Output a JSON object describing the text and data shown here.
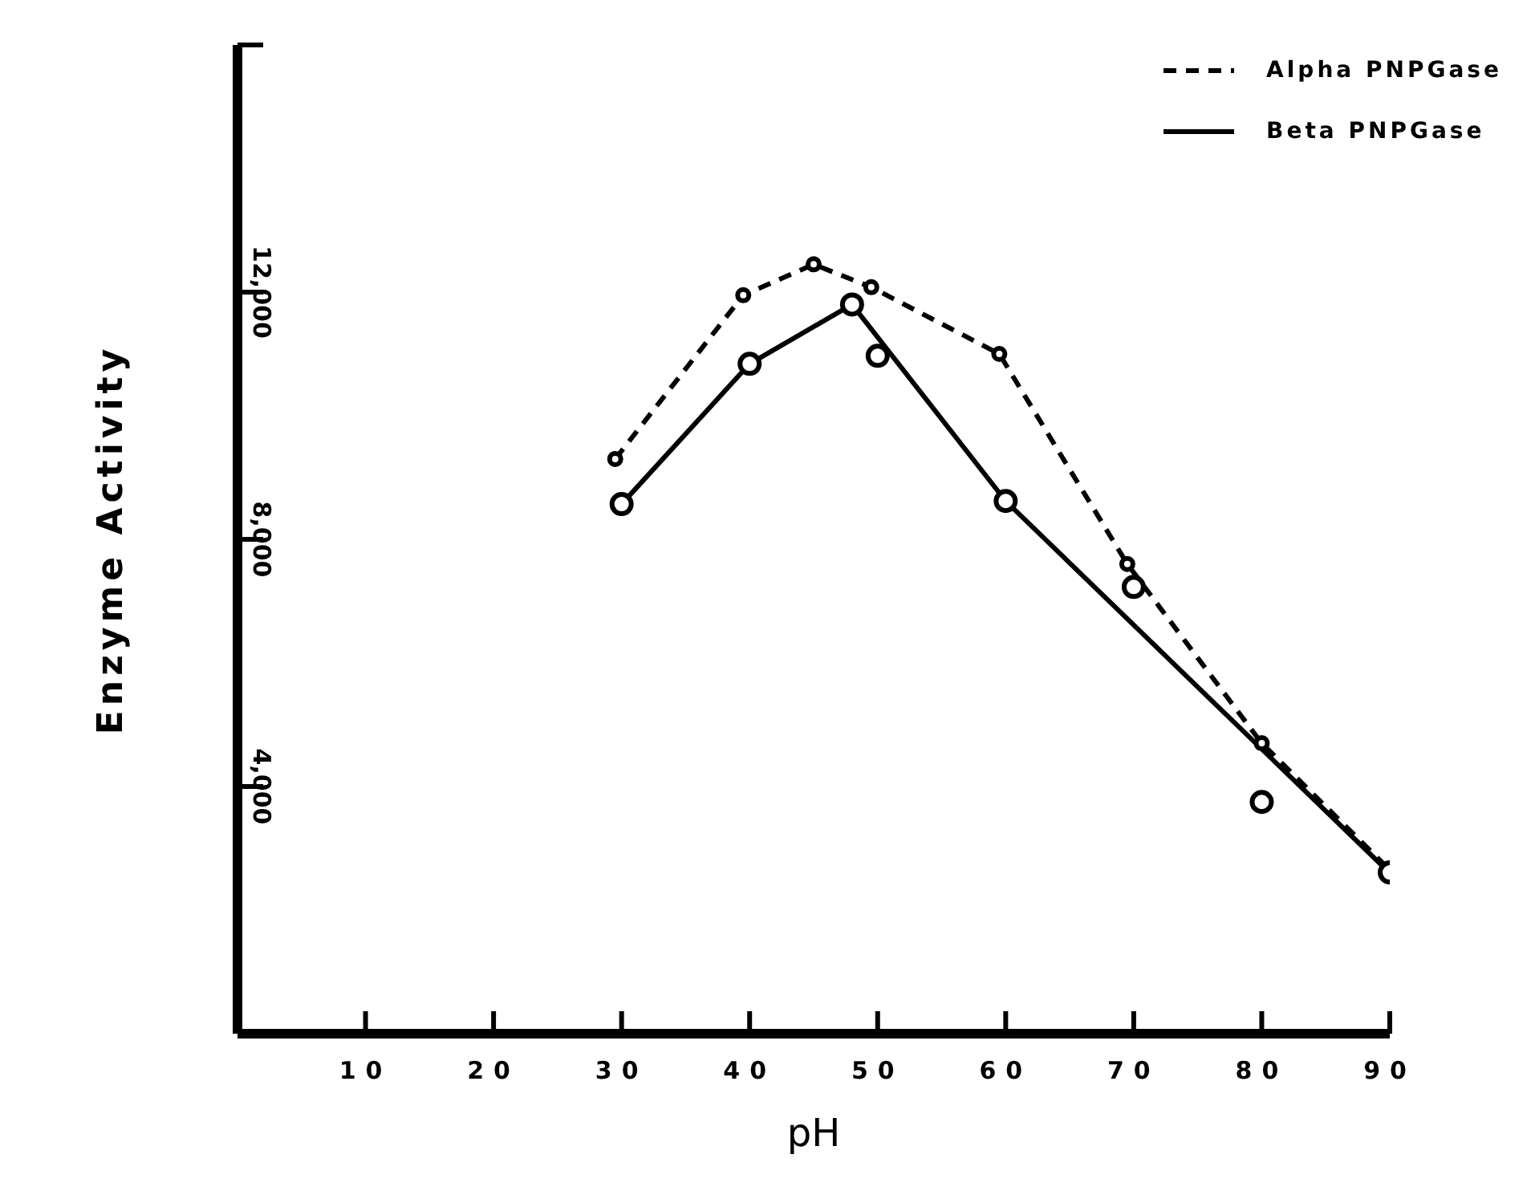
{
  "chart_data": {
    "type": "line",
    "xlabel": "pH",
    "ylabel": "Enzyme Activity",
    "xlim": [
      0,
      90
    ],
    "xticks": [
      {
        "value": 10,
        "label": "10"
      },
      {
        "value": 20,
        "label": "20"
      },
      {
        "value": 30,
        "label": "30"
      },
      {
        "value": 40,
        "label": "40"
      },
      {
        "value": 50,
        "label": "50"
      },
      {
        "value": 60,
        "label": "60"
      },
      {
        "value": 70,
        "label": "70"
      },
      {
        "value": 80,
        "label": "80"
      },
      {
        "value": 90,
        "label": "90"
      }
    ],
    "ylim": [
      0,
      16000
    ],
    "yticks": [
      {
        "value": 4000,
        "label": "4,000"
      },
      {
        "value": 8000,
        "label": "8,000"
      },
      {
        "value": 12000,
        "label": "12,000"
      },
      {
        "value": 16000,
        "label": null
      }
    ],
    "grid": false,
    "legend": "top right",
    "series": [
      {
        "name": "Alpha PNPGase",
        "color": "#000000",
        "line_style": "dashed",
        "marker": "circle",
        "x": [
          29.5,
          39.5,
          45,
          49.5,
          59.5,
          69.5,
          80,
          90
        ],
        "values": [
          9300,
          11950,
          12450,
          12080,
          11000,
          7600,
          4700,
          2650
        ]
      },
      {
        "name": "Beta PNPGase",
        "color": "#000000",
        "line_style": "solid",
        "marker": "none",
        "x": [
          30,
          40,
          48,
          60,
          90
        ],
        "values": [
          8570,
          10840,
          11800,
          8620,
          2600
        ]
      },
      {
        "type": "scatter",
        "color": "#000000",
        "marker": "circle",
        "x": [
          30,
          40,
          48,
          50,
          60,
          70,
          80,
          90
        ],
        "values": [
          8570,
          10840,
          11800,
          10970,
          8620,
          7230,
          3750,
          2610
        ]
      }
    ]
  }
}
